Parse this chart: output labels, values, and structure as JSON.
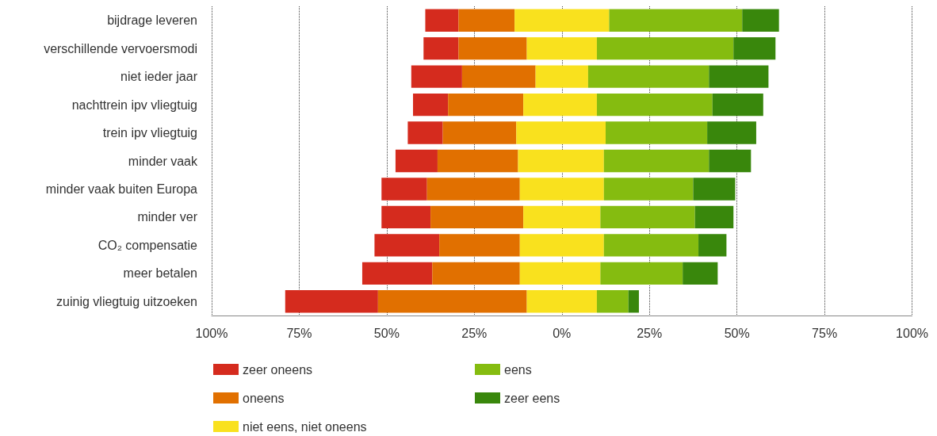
{
  "chart_data": {
    "type": "bar",
    "orientation": "horizontal",
    "categories": [
      "bijdrage leveren",
      "verschillende vervoersmodi",
      "niet ieder jaar",
      "nachttrein ipv vliegtuig",
      "trein ipv vliegtuig",
      "minder vaak",
      "minder vaak buiten Europa",
      "minder ver",
      "CO₂ compensatie",
      "meer betalen",
      "zuinig vliegtuig uitzoeken"
    ],
    "series": [
      {
        "name": "zeer oneens",
        "color": "#d52b1e",
        "base": [
          -39,
          -39.5,
          -43,
          -42.5,
          -44,
          -47.5,
          -51.5,
          -51.5,
          -53.5,
          -57,
          -79
        ],
        "values": [
          9.5,
          10,
          14.5,
          10,
          10,
          12,
          13,
          14,
          18.5,
          20,
          26.5
        ]
      },
      {
        "name": "oneens",
        "color": "#e17000",
        "base": [
          -29.5,
          -29.5,
          -28.5,
          -32.5,
          -34,
          -35.5,
          -38.5,
          -37.5,
          -35,
          -37,
          -52.5
        ],
        "values": [
          16,
          19.5,
          21,
          21.5,
          21,
          23,
          26.5,
          26.5,
          23,
          25,
          42.5
        ]
      },
      {
        "name": "niet eens, niet oneens",
        "color": "#f9e11e",
        "base": [
          -13.5,
          -10,
          -7.5,
          -11,
          -13,
          -12.5,
          -12,
          -11,
          -12,
          -12,
          -10
        ],
        "values": [
          27,
          20,
          15,
          21,
          25.5,
          24.5,
          24,
          22,
          24,
          23,
          20
        ]
      },
      {
        "name": "eens",
        "color": "#85bc10",
        "base": [
          13.5,
          10,
          7.5,
          10,
          12.5,
          12,
          12,
          11,
          12,
          11,
          10
        ],
        "values": [
          38,
          39,
          34.5,
          33,
          29,
          30,
          25.5,
          27,
          27,
          23.5,
          9
        ]
      },
      {
        "name": "zeer eens",
        "color": "#39870c",
        "base": [
          51.5,
          49,
          42,
          43,
          41.5,
          42,
          37.5,
          38,
          39,
          34.5,
          19
        ],
        "values": [
          10.5,
          12,
          17,
          14.5,
          14,
          12,
          12,
          11,
          8,
          10,
          3
        ]
      }
    ],
    "xlim": [
      -100,
      100
    ],
    "xticks": [
      {
        "value": -100,
        "label": "100%"
      },
      {
        "value": -75,
        "label": "75%"
      },
      {
        "value": -50,
        "label": "50%"
      },
      {
        "value": -25,
        "label": "25%"
      },
      {
        "value": 0,
        "label": "0%"
      },
      {
        "value": 25,
        "label": "25%"
      },
      {
        "value": 50,
        "label": "50%"
      },
      {
        "value": 75,
        "label": "75%"
      },
      {
        "value": 100,
        "label": "100%"
      }
    ],
    "grid": "x",
    "legend": "bottom"
  }
}
